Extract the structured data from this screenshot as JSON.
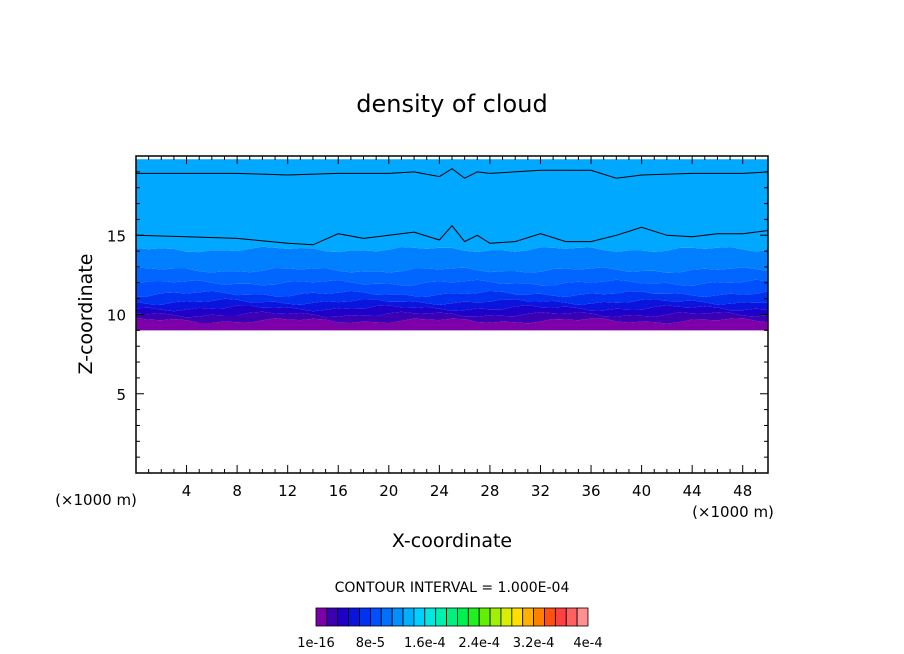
{
  "chart_data": {
    "type": "heatmap",
    "title": "density of cloud",
    "xlabel": "X-coordinate",
    "ylabel": "Z-coordinate",
    "x_unit": "(×1000 m)",
    "y_unit": "(×1000 m)",
    "xlim": [
      0,
      50
    ],
    "ylim": [
      0,
      20
    ],
    "x_ticks": [
      4,
      8,
      12,
      16,
      20,
      24,
      28,
      32,
      36,
      40,
      44,
      48
    ],
    "y_ticks": [
      5,
      10,
      15
    ],
    "contour_interval_label": "CONTOUR INTERVAL = 1.000E-04",
    "colorbar": {
      "colors": [
        "#7d00a8",
        "#3c00b4",
        "#1e00c8",
        "#0a14dc",
        "#0032f0",
        "#0050ff",
        "#0070ff",
        "#0090ff",
        "#00b0ff",
        "#00d0ff",
        "#00e8e0",
        "#00f0b0",
        "#00f080",
        "#00f050",
        "#20f020",
        "#60f000",
        "#a0f000",
        "#d8f000",
        "#ffe000",
        "#ffb000",
        "#ff8000",
        "#ff5010",
        "#ff4040",
        "#ff6060",
        "#ff9090"
      ],
      "tick_labels": [
        "1e-16",
        "8e-5",
        "1.6e-4",
        "2.4e-4",
        "3.2e-4",
        "4e-4"
      ]
    },
    "bands": [
      {
        "z_min": 9.0,
        "z_max": 9.6,
        "color": "#7d00a8"
      },
      {
        "z_min": 9.6,
        "z_max": 10.0,
        "color": "#3c00b4"
      },
      {
        "z_min": 10.0,
        "z_max": 10.4,
        "color": "#1e00c8"
      },
      {
        "z_min": 10.4,
        "z_max": 10.8,
        "color": "#0a14dc"
      },
      {
        "z_min": 10.8,
        "z_max": 11.3,
        "color": "#0032f0"
      },
      {
        "z_min": 11.3,
        "z_max": 12.0,
        "color": "#0050ff"
      },
      {
        "z_min": 12.0,
        "z_max": 12.8,
        "color": "#0066ff"
      },
      {
        "z_min": 12.8,
        "z_max": 14.1,
        "color": "#0080ff"
      },
      {
        "z_min": 14.1,
        "z_max": 19.8,
        "color": "#00a8ff"
      }
    ],
    "contour_lines": [
      {
        "label": "upper",
        "x": [
          0,
          4,
          8,
          12,
          16,
          20,
          22,
          24,
          25,
          26,
          27,
          28,
          32,
          36,
          38,
          40,
          44,
          48,
          50
        ],
        "z": [
          18.9,
          18.9,
          18.9,
          18.8,
          18.9,
          18.9,
          19.0,
          18.7,
          19.2,
          18.6,
          19.0,
          18.9,
          19.1,
          19.1,
          18.6,
          18.8,
          18.9,
          18.9,
          19.0
        ]
      },
      {
        "label": "lower",
        "x": [
          0,
          4,
          8,
          12,
          14,
          16,
          18,
          20,
          22,
          24,
          25,
          26,
          27,
          28,
          30,
          32,
          34,
          36,
          38,
          40,
          42,
          44,
          46,
          48,
          50
        ],
        "z": [
          15.0,
          14.9,
          14.8,
          14.5,
          14.4,
          15.1,
          14.8,
          15.0,
          15.2,
          14.7,
          15.6,
          14.6,
          15.0,
          14.5,
          14.6,
          15.1,
          14.6,
          14.6,
          15.0,
          15.5,
          15.0,
          14.9,
          15.1,
          15.1,
          15.3
        ]
      }
    ]
  }
}
